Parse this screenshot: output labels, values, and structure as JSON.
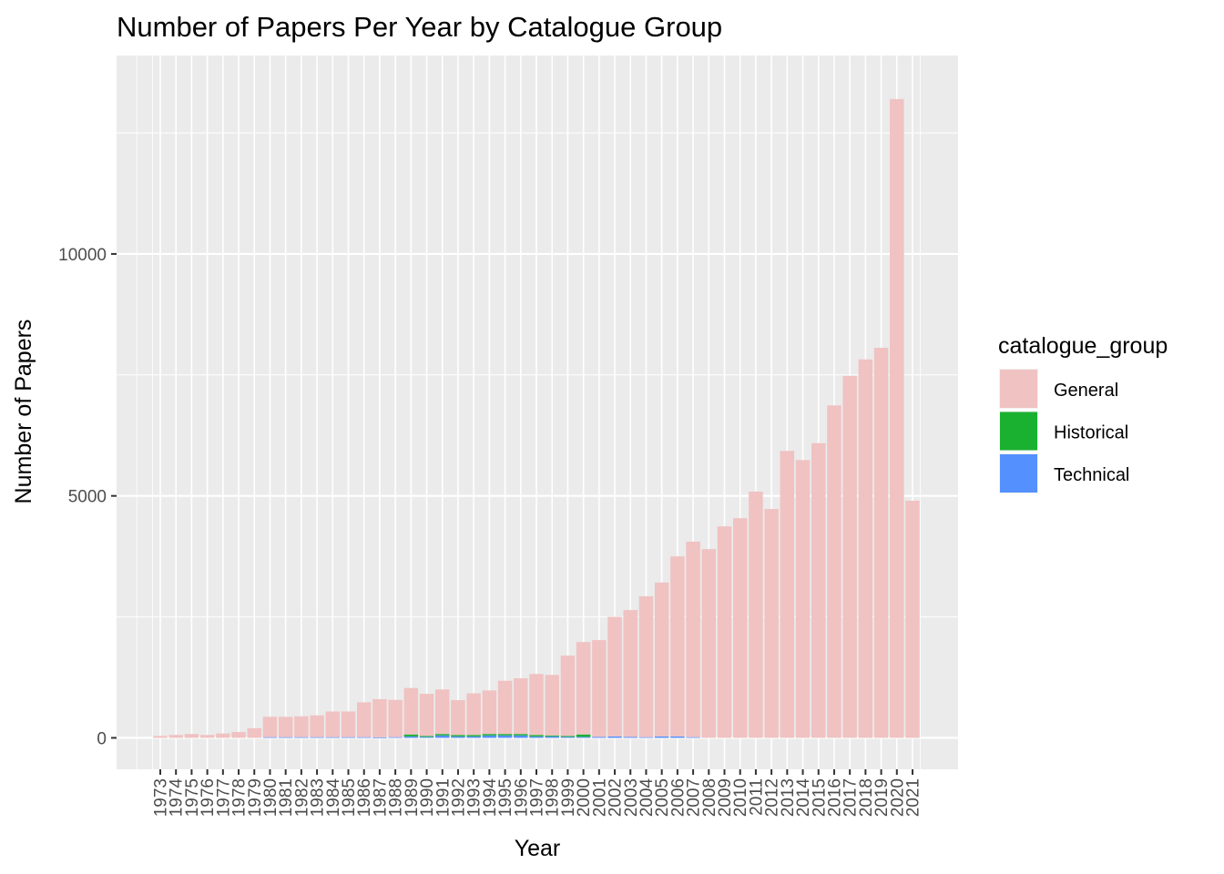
{
  "chart_data": {
    "type": "bar",
    "stacked": true,
    "title": "Number of Papers Per Year by Catalogue Group",
    "xlabel": "Year",
    "ylabel": "Number of Papers",
    "ylim": [
      -650,
      14100
    ],
    "yticks": [
      0,
      5000,
      10000
    ],
    "grid": true,
    "legend": {
      "title": "catalogue_group",
      "position": "right",
      "entries": [
        {
          "name": "General",
          "color": "#F0C2C2"
        },
        {
          "name": "Historical",
          "color": "#1AB030"
        },
        {
          "name": "Technical",
          "color": "#5590FF"
        }
      ]
    },
    "categories": [
      "1973",
      "1974",
      "1975",
      "1976",
      "1977",
      "1978",
      "1979",
      "1980",
      "1981",
      "1982",
      "1983",
      "1984",
      "1985",
      "1986",
      "1987",
      "1988",
      "1989",
      "1990",
      "1991",
      "1992",
      "1993",
      "1994",
      "1995",
      "1996",
      "1997",
      "1998",
      "1999",
      "2000",
      "2001",
      "2002",
      "2003",
      "2004",
      "2005",
      "2006",
      "2007",
      "2008",
      "2009",
      "2010",
      "2011",
      "2012",
      "2013",
      "2014",
      "2015",
      "2016",
      "2017",
      "2018",
      "2019",
      "2020",
      "2021"
    ],
    "series": [
      {
        "name": "Technical",
        "color": "#5590FF",
        "values": [
          0,
          0,
          0,
          0,
          0,
          0,
          0,
          15,
          15,
          15,
          15,
          15,
          15,
          15,
          10,
          15,
          30,
          20,
          50,
          30,
          30,
          50,
          50,
          50,
          30,
          30,
          20,
          20,
          20,
          30,
          20,
          15,
          30,
          30,
          15,
          0,
          0,
          0,
          0,
          0,
          0,
          0,
          0,
          0,
          0,
          0,
          0,
          0,
          0
        ]
      },
      {
        "name": "Historical",
        "color": "#1AB030",
        "values": [
          0,
          0,
          0,
          0,
          0,
          0,
          0,
          0,
          0,
          0,
          0,
          0,
          0,
          0,
          0,
          0,
          40,
          20,
          30,
          30,
          30,
          30,
          30,
          30,
          30,
          20,
          20,
          50,
          0,
          0,
          0,
          0,
          0,
          0,
          0,
          0,
          0,
          0,
          0,
          0,
          0,
          0,
          0,
          0,
          0,
          0,
          0,
          0,
          0
        ]
      },
      {
        "name": "General",
        "color": "#F0C2C2",
        "values": [
          40,
          60,
          80,
          60,
          90,
          120,
          200,
          420,
          420,
          430,
          450,
          530,
          530,
          720,
          790,
          770,
          960,
          870,
          920,
          720,
          860,
          900,
          1100,
          1150,
          1260,
          1250,
          1660,
          1910,
          2000,
          2470,
          2620,
          2910,
          3180,
          3720,
          4040,
          3900,
          4370,
          4540,
          5090,
          4730,
          5930,
          5740,
          6090,
          6870,
          7480,
          7820,
          8060,
          13200,
          4900
        ]
      }
    ]
  }
}
